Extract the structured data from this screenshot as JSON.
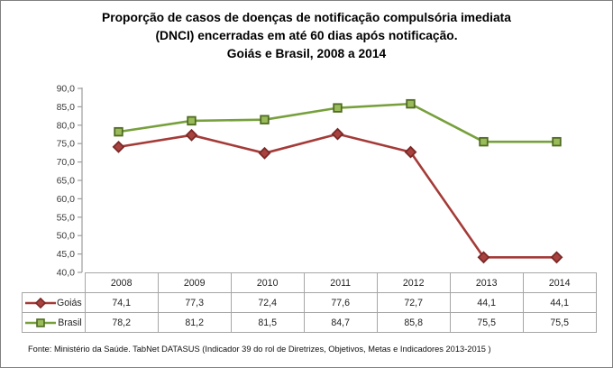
{
  "title": {
    "line1": "Proporção de casos de doenças de notificação compulsória imediata",
    "line2": "(DNCI) encerradas em até 60 dias após notificação.",
    "line3": "Goiás e Brasil, 2008 a 2014"
  },
  "chart_data": {
    "type": "line",
    "title": "Proporção de casos de doenças de notificação compulsória imediata (DNCI) encerradas em até 60 dias após notificação. Goiás e Brasil, 2008 a 2014",
    "categories": [
      "2008",
      "2009",
      "2010",
      "2011",
      "2012",
      "2013",
      "2014"
    ],
    "series": [
      {
        "name": "Goiás",
        "values": [
          74.1,
          77.3,
          72.4,
          77.6,
          72.7,
          44.1,
          44.1
        ],
        "labels": [
          "74,1",
          "77,3",
          "72,4",
          "77,6",
          "72,7",
          "44,1",
          "44,1"
        ],
        "color": "#A43B38",
        "marker": "diamond",
        "marker_fill": "#A8423F",
        "marker_stroke": "#7A2826"
      },
      {
        "name": "Brasil",
        "values": [
          78.2,
          81.2,
          81.5,
          84.7,
          85.8,
          75.5,
          75.5
        ],
        "labels": [
          "78,2",
          "81,2",
          "81,5",
          "84,7",
          "85,8",
          "75,5",
          "75,5"
        ],
        "color": "#77A03C",
        "marker": "square",
        "marker_fill": "#9ABB59",
        "marker_stroke": "#4E6B21"
      }
    ],
    "ylim": [
      40,
      90
    ],
    "ytick_step": 5,
    "ytick_labels": [
      "90,0",
      "85,0",
      "80,0",
      "75,0",
      "70,0",
      "65,0",
      "60,0",
      "55,0",
      "50,0",
      "45,0",
      "40,0"
    ],
    "grid": false,
    "legend_position": "data-table-left",
    "axis_color": "#9C9C9C",
    "tick_label_color": "#3a3a3a"
  },
  "footer": {
    "source": "Fonte: Ministério da Saúde. TabNet DATASUS (Indicador 39 do rol de Diretrizes, Objetivos, Metas e Indicadores 2013-2015 )"
  }
}
